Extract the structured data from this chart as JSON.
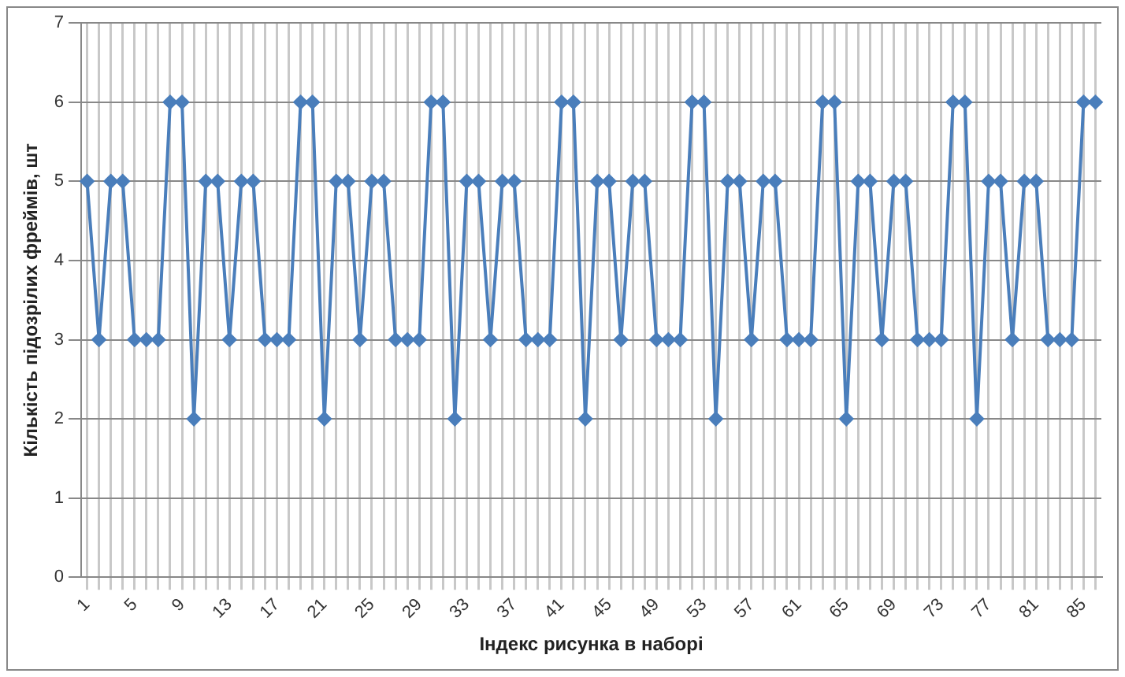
{
  "chart_data": {
    "type": "line",
    "xlabel": "Індекс рисунка в наборі",
    "ylabel": "Кількість підозрілих фреймів, шт",
    "categories": [
      "1",
      null,
      null,
      null,
      "5",
      null,
      null,
      null,
      "9",
      null,
      null,
      null,
      "13",
      null,
      null,
      null,
      "17",
      null,
      null,
      null,
      "21",
      null,
      null,
      null,
      "25",
      null,
      null,
      null,
      "29",
      null,
      null,
      null,
      "33",
      null,
      null,
      null,
      "37",
      null,
      null,
      null,
      "41",
      null,
      null,
      null,
      "45",
      null,
      null,
      null,
      "49",
      null,
      null,
      null,
      "53",
      null,
      null,
      null,
      "57",
      null,
      null,
      null,
      "61",
      null,
      null,
      null,
      "65",
      null,
      null,
      null,
      "69",
      null,
      null,
      null,
      "73",
      null,
      null,
      null,
      "77",
      null,
      null,
      null,
      "81",
      null,
      null,
      null,
      "85",
      null
    ],
    "series": [
      {
        "color": "#4a7ebb",
        "values": [
          5,
          3,
          5,
          5,
          3,
          3,
          3,
          6,
          6,
          2,
          5,
          5,
          3,
          5,
          5,
          3,
          3,
          3,
          6,
          6,
          2,
          5,
          5,
          3,
          5,
          5,
          3,
          3,
          3,
          6,
          6,
          2,
          5,
          5,
          3,
          5,
          5,
          3,
          3,
          3,
          6,
          6,
          2,
          5,
          5,
          3,
          5,
          5,
          3,
          3,
          3,
          6,
          6,
          2,
          5,
          5,
          3,
          5,
          5,
          3,
          3,
          3,
          6,
          6,
          2,
          5,
          5,
          3,
          5,
          5,
          3,
          3,
          3,
          6,
          6,
          2,
          5,
          5,
          3,
          5,
          5,
          3,
          3,
          3,
          6,
          6
        ]
      }
    ],
    "ylim": [
      0,
      7
    ],
    "yticks": [
      0,
      1,
      2,
      3,
      4,
      5,
      6,
      7
    ],
    "grid": true,
    "legend": false,
    "marker": "diamond",
    "line_style": "solid"
  }
}
